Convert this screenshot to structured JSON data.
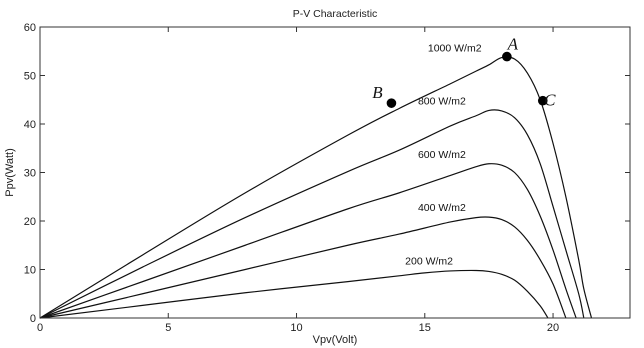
{
  "chart_data": {
    "type": "line",
    "title": "P-V Characteristic",
    "xlabel": "Vpv(Volt)",
    "ylabel": "Ppv(Watt)",
    "xlim": [
      0,
      23
    ],
    "ylim": [
      0,
      60
    ],
    "xticks": [
      0,
      5,
      10,
      15,
      20
    ],
    "yticks": [
      0,
      10,
      20,
      30,
      40,
      50,
      60
    ],
    "grid": false,
    "series": [
      {
        "name": "1000 W/m2",
        "x": [
          0,
          4,
          8,
          12,
          14,
          16,
          17,
          17.5,
          18,
          18.5,
          19,
          19.5,
          20,
          20.5,
          21,
          21.2,
          21.5
        ],
        "y": [
          0,
          13,
          25.8,
          37.7,
          43.2,
          48.3,
          50.9,
          52.2,
          53.7,
          53.4,
          50.5,
          45,
          36,
          25,
          12,
          6,
          0
        ]
      },
      {
        "name": "800 W/m2",
        "x": [
          0,
          4,
          8,
          12,
          14,
          16,
          17,
          17.5,
          18,
          18.5,
          19,
          19.5,
          20,
          20.5,
          21,
          21.2
        ],
        "y": [
          0,
          10.5,
          20.7,
          30.2,
          34.6,
          39.6,
          41.7,
          42.8,
          42.7,
          41.3,
          37.8,
          31.8,
          23,
          14,
          5,
          0
        ]
      },
      {
        "name": "600 W/m2",
        "x": [
          0,
          4,
          8,
          12,
          14,
          16,
          17,
          17.5,
          18,
          18.5,
          19,
          19.5,
          20,
          20.5,
          20.9
        ],
        "y": [
          0,
          7.5,
          15,
          22.5,
          25.8,
          29.4,
          31.2,
          31.8,
          31.5,
          30,
          26.5,
          21,
          14,
          6,
          0
        ]
      },
      {
        "name": "400 W/m2",
        "x": [
          0,
          4,
          8,
          12,
          14,
          16,
          17,
          17.5,
          18,
          18.5,
          19,
          19.5,
          20,
          20.5
        ],
        "y": [
          0,
          5,
          10,
          15,
          17.3,
          19.8,
          20.7,
          20.8,
          20.3,
          18.8,
          16,
          12,
          7,
          0
        ]
      },
      {
        "name": "200 W/m2",
        "x": [
          0,
          4,
          8,
          12,
          14,
          15,
          16,
          17,
          17.5,
          18,
          18.5,
          19,
          19.5,
          19.8
        ],
        "y": [
          0,
          2.6,
          5.2,
          7.5,
          8.7,
          9.3,
          9.7,
          9.8,
          9.6,
          9,
          7.8,
          5.5,
          2.5,
          0
        ]
      }
    ],
    "annotations": [
      {
        "label": "A",
        "x": 18.2,
        "y": 53.9
      },
      {
        "label": "B",
        "x": 13.7,
        "y": 44.3
      },
      {
        "label": "C",
        "x": 19.6,
        "y": 44.8
      }
    ]
  }
}
